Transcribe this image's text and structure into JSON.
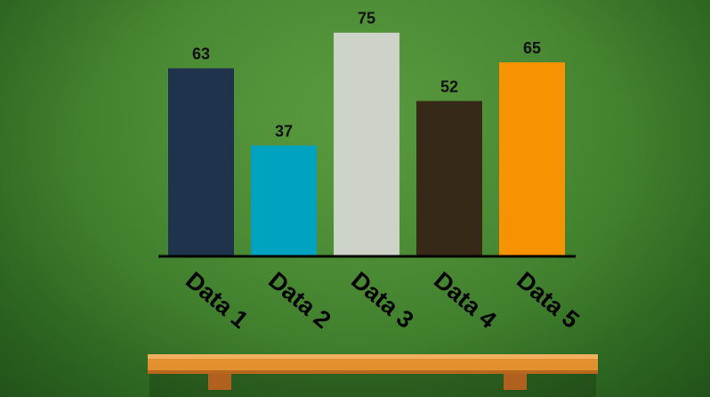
{
  "chart_data": {
    "type": "bar",
    "categories": [
      "Data 1",
      "Data 2",
      "Data 3",
      "Data 4",
      "Data 5"
    ],
    "values": [
      63,
      37,
      75,
      52,
      65
    ],
    "colors": [
      "#1f334c",
      "#00a3bf",
      "#cdd3c8",
      "#372917",
      "#f79200"
    ],
    "ylim": [
      0,
      80
    ],
    "grid": false,
    "legend": "none"
  },
  "theme": {
    "background": "#4a8a34",
    "baseline_color": "#000000",
    "shelf_color": "#e8923a"
  }
}
